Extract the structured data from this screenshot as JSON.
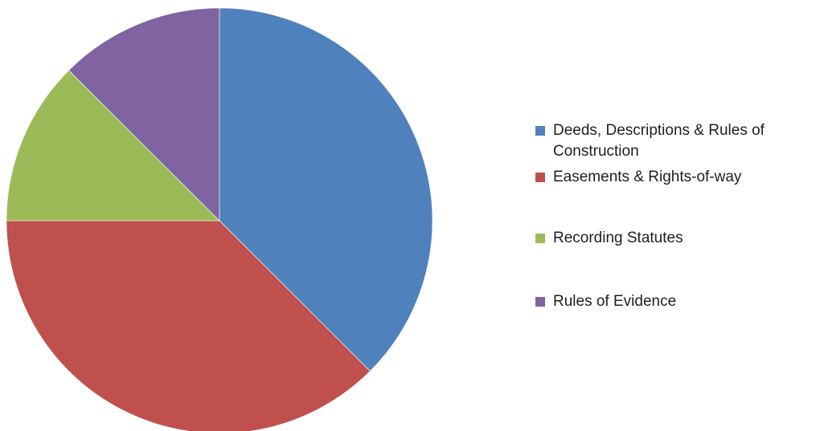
{
  "chart_data": {
    "type": "pie",
    "title": "",
    "legend_position": "right",
    "categories": [
      "Deeds, Descriptions & Rules of Construction",
      "Easements & Rights-of-way",
      "Recording Statutes",
      "Rules of Evidence"
    ],
    "values": [
      37.5,
      37.5,
      12.5,
      12.5
    ],
    "colors": [
      "#4F81BD",
      "#C0504D",
      "#9BBB59",
      "#8064A2"
    ]
  }
}
